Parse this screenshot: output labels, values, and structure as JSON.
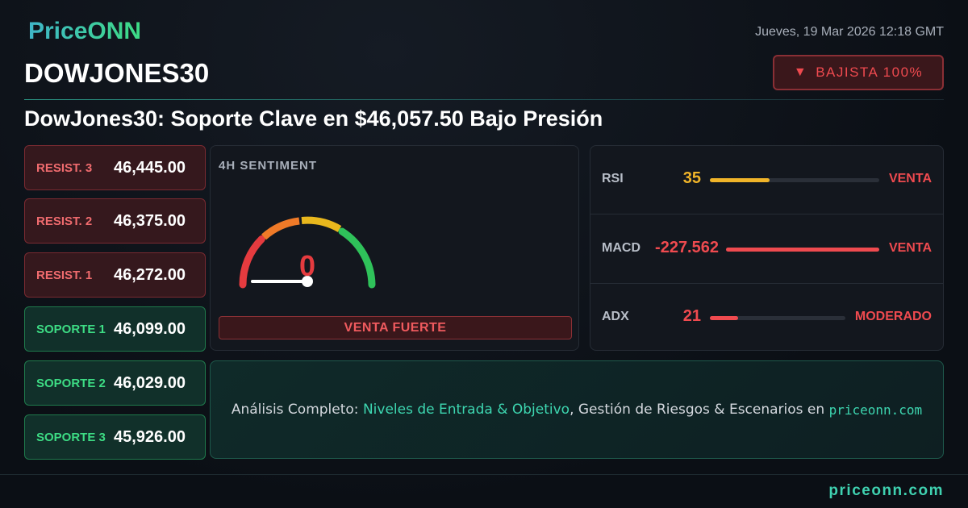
{
  "header": {
    "logo": "PriceONN",
    "date": "Jueves, 19 Mar 2026 12:18 GMT",
    "symbol": "DOWJONES30",
    "badge": "BAJISTA 100%",
    "headline": "DowJones30: Soporte Clave en $46,057.50 Bajo Presión"
  },
  "levels": [
    {
      "label": "RESIST. 3",
      "value": "46,445.00",
      "kind": "resistance"
    },
    {
      "label": "RESIST. 2",
      "value": "46,375.00",
      "kind": "resistance"
    },
    {
      "label": "RESIST. 1",
      "value": "46,272.00",
      "kind": "resistance"
    },
    {
      "label": "SOPORTE 1",
      "value": "46,099.00",
      "kind": "support"
    },
    {
      "label": "SOPORTE 2",
      "value": "46,029.00",
      "kind": "support"
    },
    {
      "label": "SOPORTE 3",
      "value": "45,926.00",
      "kind": "support"
    }
  ],
  "sentiment": {
    "title": "4H SENTIMENT",
    "value": "0",
    "label": "VENTA FUERTE"
  },
  "indicators": [
    {
      "name": "RSI",
      "value": "35",
      "signal": "VENTA"
    },
    {
      "name": "MACD",
      "value": "-227.562",
      "signal": "VENTA"
    },
    {
      "name": "ADX",
      "value": "21",
      "signal": "MODERADO"
    }
  ],
  "cta": {
    "lead": "Análisis Completo:",
    "highlight": "Niveles de Entrada & Objetivo",
    "rest": ", Gestión de Riesgos & Escenarios en",
    "link": "priceonn.com"
  },
  "footer": {
    "site": "priceonn.com"
  }
}
